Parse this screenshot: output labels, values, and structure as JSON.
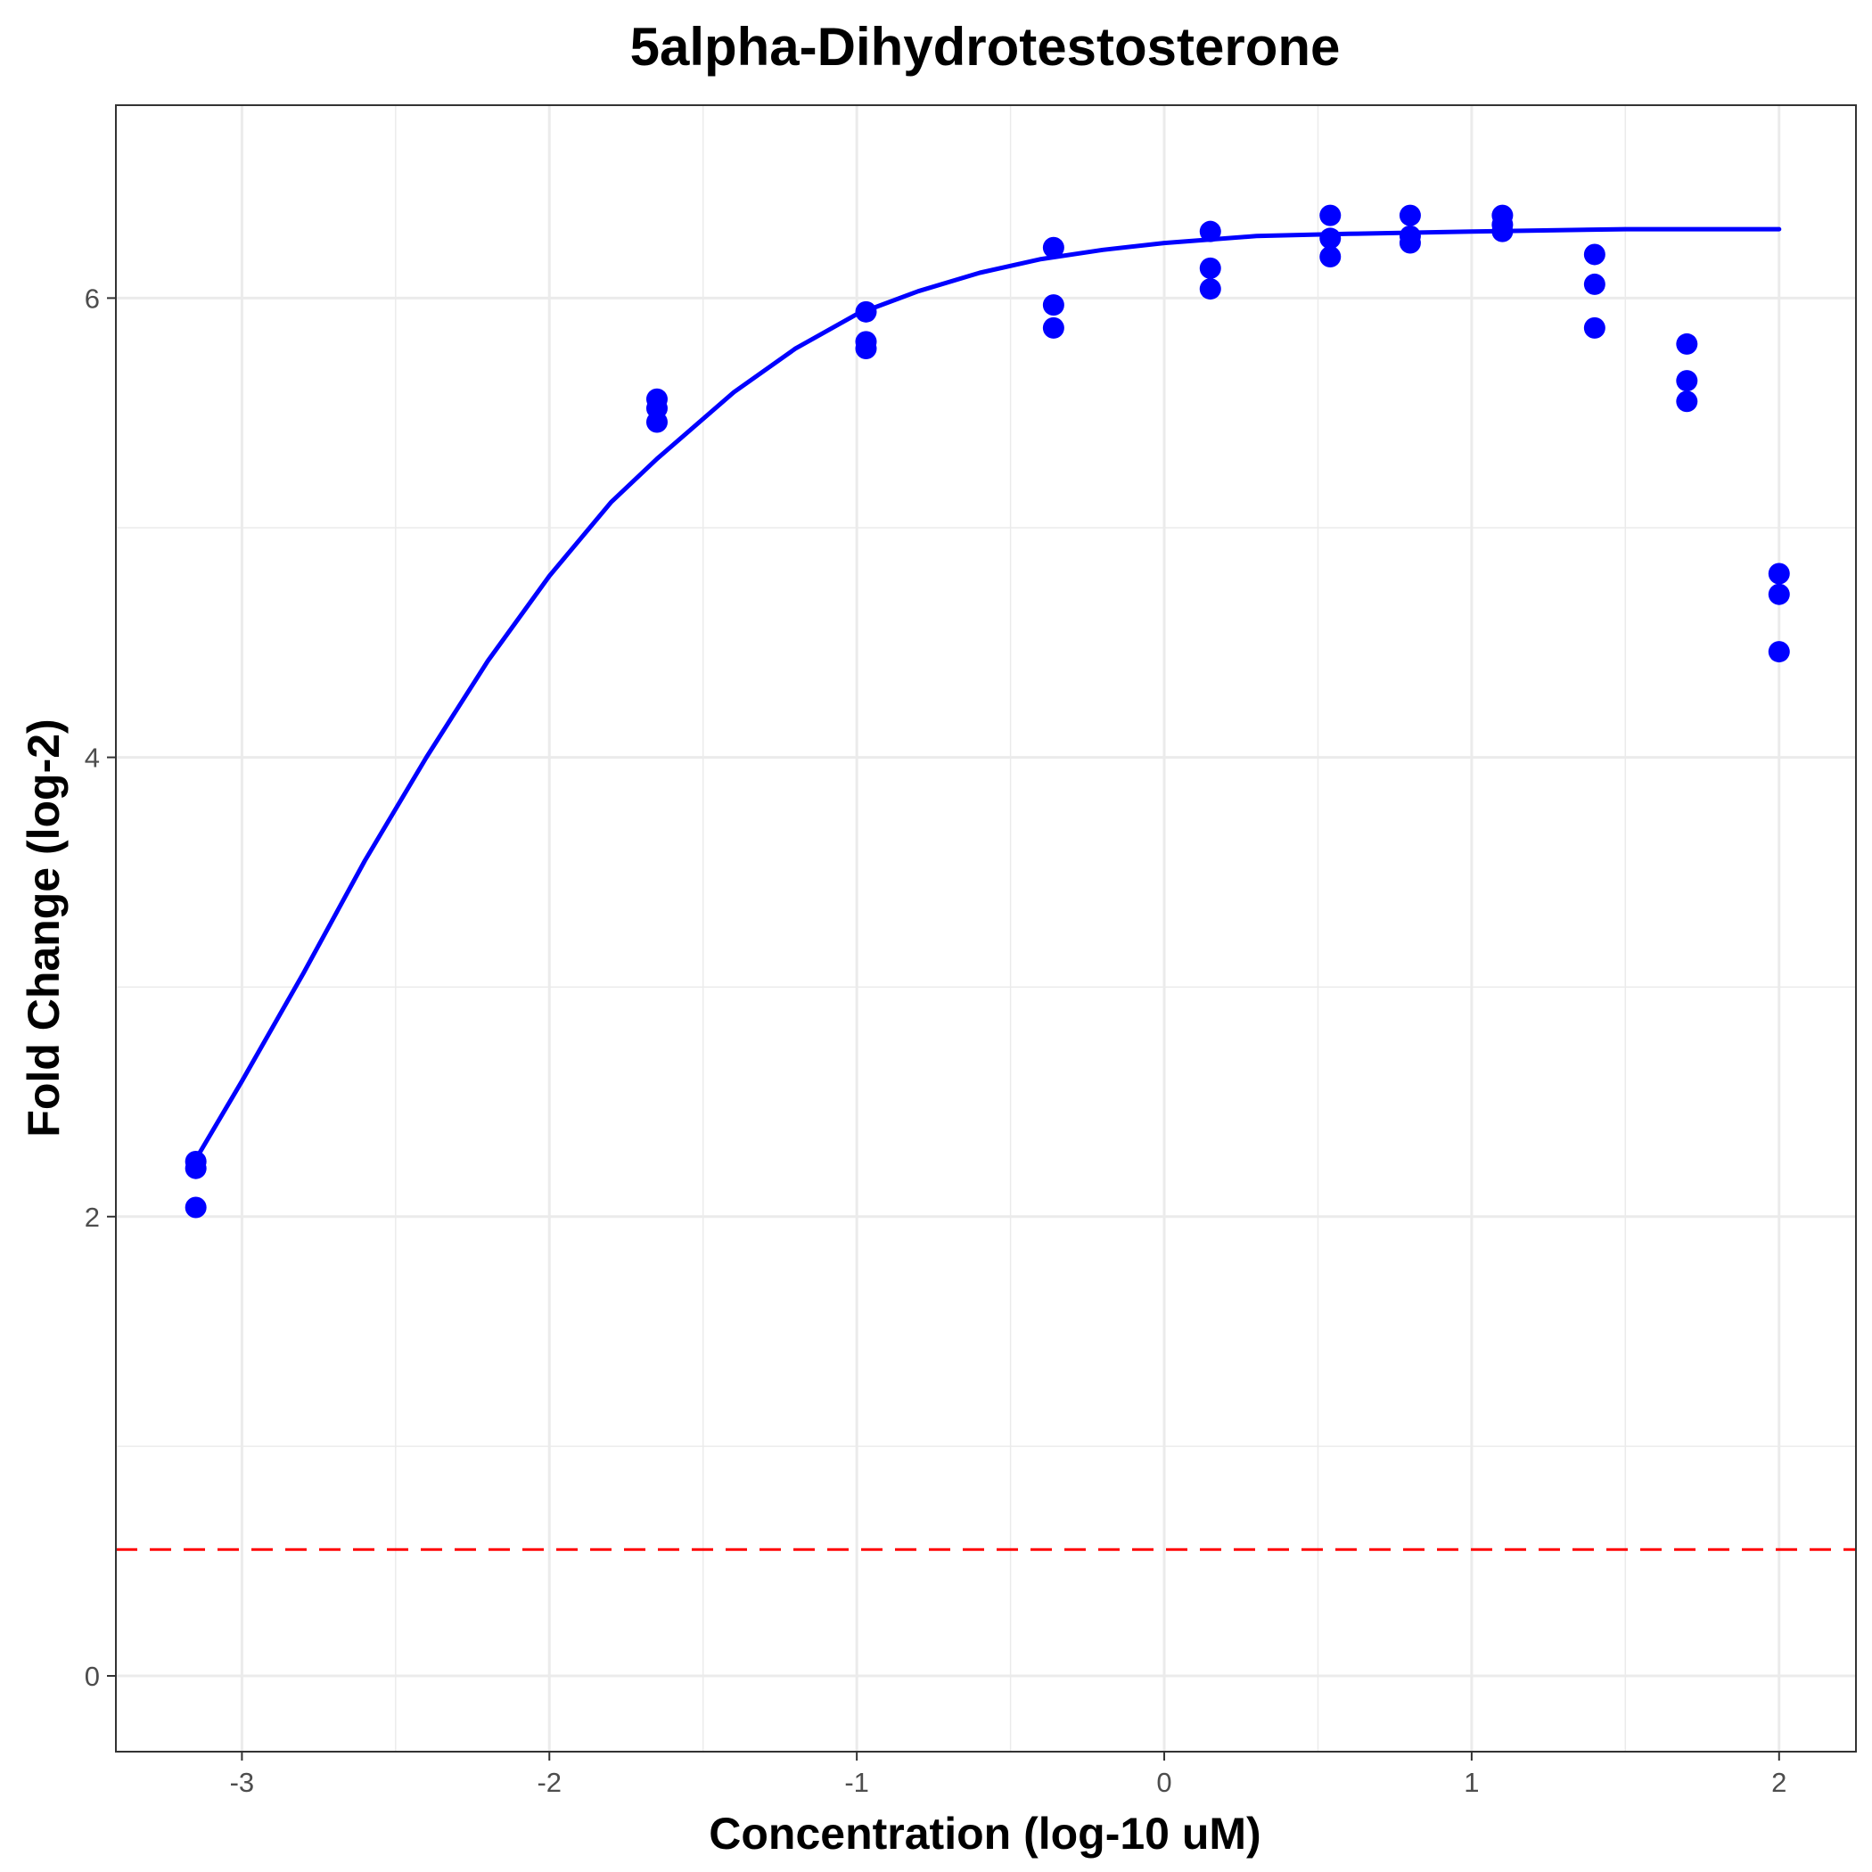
{
  "chart_data": {
    "type": "scatter",
    "title": "5alpha-Dihydrotestosterone",
    "xlabel": "Concentration (log-10 uM)",
    "ylabel": "Fold Change (log-2)",
    "xlim": [
      -3.41,
      2.25
    ],
    "ylim": [
      -0.33,
      6.84
    ],
    "x_ticks": [
      -3,
      -2,
      -1,
      0,
      1,
      2
    ],
    "y_ticks": [
      0,
      2,
      4,
      6
    ],
    "grid": true,
    "legend": "none",
    "colors": {
      "points": "#0000ff",
      "curve": "#0000ff",
      "threshold": "#ff0000",
      "grid": "#ebebeb",
      "panel_border": "#333333"
    },
    "threshold": {
      "y": 0.55,
      "style": "dashed"
    },
    "points": [
      {
        "x": -3.15,
        "y": 2.24
      },
      {
        "x": -3.15,
        "y": 2.21
      },
      {
        "x": -3.15,
        "y": 2.04
      },
      {
        "x": -1.65,
        "y": 5.56
      },
      {
        "x": -1.65,
        "y": 5.52
      },
      {
        "x": -1.65,
        "y": 5.46
      },
      {
        "x": -0.97,
        "y": 5.94
      },
      {
        "x": -0.97,
        "y": 5.81
      },
      {
        "x": -0.97,
        "y": 5.78
      },
      {
        "x": -0.36,
        "y": 6.22
      },
      {
        "x": -0.36,
        "y": 5.97
      },
      {
        "x": -0.36,
        "y": 5.87
      },
      {
        "x": 0.15,
        "y": 6.29
      },
      {
        "x": 0.15,
        "y": 6.13
      },
      {
        "x": 0.15,
        "y": 6.04
      },
      {
        "x": 0.54,
        "y": 6.36
      },
      {
        "x": 0.54,
        "y": 6.26
      },
      {
        "x": 0.54,
        "y": 6.18
      },
      {
        "x": 0.8,
        "y": 6.36
      },
      {
        "x": 0.8,
        "y": 6.27
      },
      {
        "x": 0.8,
        "y": 6.24
      },
      {
        "x": 1.1,
        "y": 6.36
      },
      {
        "x": 1.1,
        "y": 6.32
      },
      {
        "x": 1.1,
        "y": 6.29
      },
      {
        "x": 1.4,
        "y": 6.19
      },
      {
        "x": 1.4,
        "y": 6.06
      },
      {
        "x": 1.4,
        "y": 5.87
      },
      {
        "x": 1.7,
        "y": 5.8
      },
      {
        "x": 1.7,
        "y": 5.64
      },
      {
        "x": 1.7,
        "y": 5.55
      },
      {
        "x": 2.0,
        "y": 4.8
      },
      {
        "x": 2.0,
        "y": 4.71
      },
      {
        "x": 2.0,
        "y": 4.46
      }
    ],
    "fit_curve": [
      {
        "x": -3.15,
        "y": 2.25
      },
      {
        "x": -3.0,
        "y": 2.59
      },
      {
        "x": -2.8,
        "y": 3.06
      },
      {
        "x": -2.6,
        "y": 3.55
      },
      {
        "x": -2.4,
        "y": 4.0
      },
      {
        "x": -2.2,
        "y": 4.42
      },
      {
        "x": -2.0,
        "y": 4.79
      },
      {
        "x": -1.8,
        "y": 5.11
      },
      {
        "x": -1.65,
        "y": 5.3
      },
      {
        "x": -1.4,
        "y": 5.59
      },
      {
        "x": -1.2,
        "y": 5.78
      },
      {
        "x": -1.0,
        "y": 5.93
      },
      {
        "x": -0.8,
        "y": 6.03
      },
      {
        "x": -0.6,
        "y": 6.11
      },
      {
        "x": -0.4,
        "y": 6.17
      },
      {
        "x": -0.2,
        "y": 6.21
      },
      {
        "x": 0.0,
        "y": 6.24
      },
      {
        "x": 0.3,
        "y": 6.27
      },
      {
        "x": 0.6,
        "y": 6.28
      },
      {
        "x": 1.0,
        "y": 6.29
      },
      {
        "x": 1.5,
        "y": 6.3
      },
      {
        "x": 2.0,
        "y": 6.3
      }
    ]
  }
}
